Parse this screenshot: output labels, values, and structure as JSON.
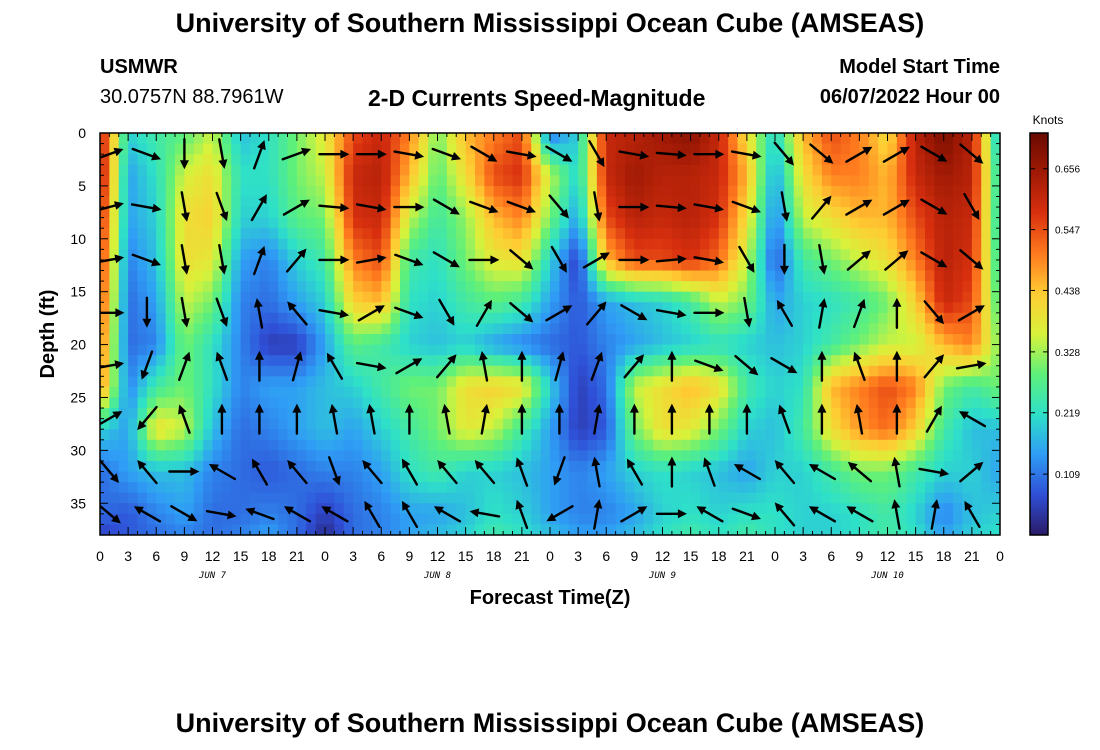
{
  "header": {
    "title": "University of Southern Mississippi Ocean Cube (AMSEAS)",
    "station": "USMWR",
    "coordinates": "30.0757N  88.7961W",
    "subtitle": "2-D Currents Speed-Magnitude",
    "model_start_label": "Model Start Time",
    "model_start_value": "06/07/2022 Hour 00"
  },
  "footer": {
    "title": "University of Southern Mississippi Ocean Cube (AMSEAS)"
  },
  "colors": {
    "scale": [
      "#2a1a66",
      "#2f4fd6",
      "#2f9cf5",
      "#2ee0c8",
      "#5ef07a",
      "#d8f23a",
      "#ffcc33",
      "#ff7a1e",
      "#d8300f",
      "#a11a05",
      "#6a0a00"
    ],
    "arrow": "#000000"
  },
  "chart_data": {
    "type": "heatmap",
    "title": "2-D Currents Speed-Magnitude",
    "xlabel": "Forecast Time(Z)",
    "ylabel": "Depth (ft)",
    "xlim": [
      0,
      96
    ],
    "ylim": [
      38,
      0
    ],
    "x_ticks": [
      0,
      3,
      6,
      9,
      12,
      15,
      18,
      21,
      24,
      27,
      30,
      33,
      36,
      39,
      42,
      45,
      48,
      51,
      54,
      57,
      60,
      63,
      66,
      69,
      72,
      75,
      78,
      81,
      84,
      87,
      90,
      93,
      96
    ],
    "x_tick_labels": [
      "0",
      "3",
      "6",
      "9",
      "12",
      "15",
      "18",
      "21",
      "0",
      "3",
      "6",
      "9",
      "12",
      "15",
      "18",
      "21",
      "0",
      "3",
      "6",
      "9",
      "12",
      "15",
      "18",
      "21",
      "0",
      "3",
      "6",
      "9",
      "12",
      "15",
      "18",
      "21",
      "0"
    ],
    "y_ticks": [
      0,
      5,
      10,
      15,
      20,
      25,
      30,
      35
    ],
    "y_tick_labels": [
      "0",
      "5",
      "10",
      "15",
      "20",
      "25",
      "30",
      "35"
    ],
    "day_labels": [
      {
        "label": "JUN 7",
        "hour": 12
      },
      {
        "label": "JUN 8",
        "hour": 36
      },
      {
        "label": "JUN 9",
        "hour": 60
      },
      {
        "label": "JUN 10",
        "hour": 84
      }
    ],
    "colorbar": {
      "unit": "Knots",
      "min": 0.0,
      "max": 0.72,
      "tick_values": [
        0.109,
        0.219,
        0.328,
        0.438,
        0.547,
        0.656
      ],
      "tick_labels": [
        "0.109",
        "0.219",
        "0.328",
        "0.438",
        "0.547",
        "0.656"
      ]
    },
    "speed_grid": {
      "hours": [
        0,
        3,
        6,
        9,
        12,
        15,
        18,
        21,
        24,
        27,
        30,
        33,
        36,
        39,
        42,
        45,
        48,
        51,
        54,
        57,
        60,
        63,
        66,
        69,
        72,
        75,
        78,
        81,
        84,
        87,
        90,
        93,
        96
      ],
      "depths": [
        0,
        4,
        8,
        12,
        16,
        20,
        24,
        28,
        32,
        36,
        38
      ],
      "values": [
        [
          0.62,
          0.2,
          0.25,
          0.28,
          0.35,
          0.18,
          0.22,
          0.3,
          0.38,
          0.55,
          0.6,
          0.5,
          0.3,
          0.45,
          0.5,
          0.55,
          0.1,
          0.2,
          0.6,
          0.62,
          0.65,
          0.68,
          0.6,
          0.4,
          0.2,
          0.45,
          0.55,
          0.5,
          0.4,
          0.62,
          0.7,
          0.62,
          0.15
        ],
        [
          0.64,
          0.15,
          0.22,
          0.36,
          0.4,
          0.22,
          0.22,
          0.3,
          0.35,
          0.6,
          0.62,
          0.45,
          0.28,
          0.4,
          0.55,
          0.58,
          0.35,
          0.2,
          0.6,
          0.65,
          0.62,
          0.62,
          0.6,
          0.45,
          0.15,
          0.4,
          0.5,
          0.5,
          0.45,
          0.6,
          0.65,
          0.62,
          0.2
        ],
        [
          0.6,
          0.15,
          0.2,
          0.4,
          0.42,
          0.2,
          0.2,
          0.28,
          0.3,
          0.58,
          0.6,
          0.35,
          0.25,
          0.32,
          0.45,
          0.5,
          0.3,
          0.15,
          0.55,
          0.62,
          0.6,
          0.62,
          0.58,
          0.4,
          0.12,
          0.35,
          0.4,
          0.45,
          0.45,
          0.55,
          0.62,
          0.6,
          0.2
        ],
        [
          0.58,
          0.12,
          0.18,
          0.4,
          0.38,
          0.15,
          0.12,
          0.2,
          0.25,
          0.5,
          0.55,
          0.25,
          0.22,
          0.3,
          0.38,
          0.4,
          0.2,
          0.05,
          0.45,
          0.55,
          0.55,
          0.58,
          0.52,
          0.35,
          0.08,
          0.25,
          0.3,
          0.35,
          0.4,
          0.5,
          0.62,
          0.58,
          0.22
        ],
        [
          0.56,
          0.1,
          0.15,
          0.35,
          0.3,
          0.12,
          0.1,
          0.15,
          0.2,
          0.42,
          0.45,
          0.22,
          0.2,
          0.25,
          0.28,
          0.25,
          0.15,
          0.08,
          0.15,
          0.18,
          0.2,
          0.25,
          0.35,
          0.3,
          0.15,
          0.2,
          0.22,
          0.25,
          0.3,
          0.42,
          0.6,
          0.55,
          0.25
        ],
        [
          0.52,
          0.1,
          0.12,
          0.3,
          0.22,
          0.12,
          0.05,
          0.05,
          0.15,
          0.28,
          0.25,
          0.2,
          0.18,
          0.2,
          0.15,
          0.12,
          0.1,
          0.08,
          0.12,
          0.15,
          0.18,
          0.2,
          0.22,
          0.2,
          0.18,
          0.2,
          0.25,
          0.3,
          0.35,
          0.35,
          0.45,
          0.5,
          0.3
        ],
        [
          0.5,
          0.12,
          0.25,
          0.3,
          0.22,
          0.12,
          0.15,
          0.15,
          0.18,
          0.2,
          0.25,
          0.3,
          0.3,
          0.4,
          0.42,
          0.4,
          0.2,
          0.05,
          0.1,
          0.35,
          0.4,
          0.45,
          0.4,
          0.25,
          0.2,
          0.22,
          0.45,
          0.5,
          0.55,
          0.5,
          0.3,
          0.25,
          0.3
        ],
        [
          0.2,
          0.15,
          0.4,
          0.35,
          0.18,
          0.1,
          0.12,
          0.15,
          0.18,
          0.15,
          0.2,
          0.25,
          0.3,
          0.38,
          0.35,
          0.25,
          0.15,
          0.05,
          0.08,
          0.3,
          0.4,
          0.38,
          0.3,
          0.2,
          0.18,
          0.25,
          0.4,
          0.48,
          0.52,
          0.42,
          0.25,
          0.18,
          0.18
        ],
        [
          0.1,
          0.15,
          0.18,
          0.18,
          0.12,
          0.1,
          0.08,
          0.1,
          0.12,
          0.12,
          0.15,
          0.22,
          0.25,
          0.2,
          0.2,
          0.18,
          0.15,
          0.12,
          0.15,
          0.2,
          0.22,
          0.2,
          0.18,
          0.15,
          0.2,
          0.2,
          0.25,
          0.3,
          0.3,
          0.25,
          0.2,
          0.2,
          0.15
        ],
        [
          0.1,
          0.08,
          0.12,
          0.15,
          0.1,
          0.1,
          0.12,
          0.1,
          0.05,
          0.1,
          0.12,
          0.15,
          0.15,
          0.18,
          0.22,
          0.2,
          0.15,
          0.12,
          0.12,
          0.15,
          0.2,
          0.22,
          0.2,
          0.22,
          0.22,
          0.2,
          0.2,
          0.22,
          0.25,
          0.2,
          0.12,
          0.18,
          0.2
        ],
        [
          0.05,
          0.08,
          0.1,
          0.12,
          0.1,
          0.12,
          0.15,
          0.1,
          0.02,
          0.1,
          0.12,
          0.15,
          0.18,
          0.2,
          0.25,
          0.22,
          0.18,
          0.15,
          0.15,
          0.18,
          0.22,
          0.25,
          0.22,
          0.25,
          0.22,
          0.2,
          0.2,
          0.22,
          0.25,
          0.22,
          0.15,
          0.2,
          0.22
        ]
      ]
    },
    "vectors": {
      "hours": [
        1,
        5,
        9,
        13,
        17,
        21,
        25,
        29,
        33,
        37,
        41,
        45,
        49,
        53,
        57,
        61,
        65,
        69,
        73,
        77,
        81,
        85,
        89,
        93
      ],
      "depths": [
        2,
        7,
        12,
        17,
        22,
        27,
        32,
        36
      ],
      "directions_deg": [
        [
          70,
          110,
          180,
          170,
          20,
          70,
          90,
          90,
          100,
          110,
          120,
          100,
          120,
          150,
          100,
          95,
          90,
          100,
          140,
          130,
          60,
          60,
          120,
          130
        ],
        [
          75,
          100,
          170,
          160,
          30,
          60,
          95,
          100,
          90,
          120,
          110,
          110,
          140,
          170,
          90,
          95,
          100,
          110,
          170,
          40,
          60,
          60,
          120,
          150
        ],
        [
          80,
          110,
          170,
          170,
          20,
          40,
          90,
          80,
          110,
          120,
          90,
          130,
          150,
          60,
          90,
          85,
          100,
          150,
          180,
          170,
          50,
          50,
          120,
          130
        ],
        [
          90,
          180,
          170,
          160,
          350,
          320,
          100,
          60,
          110,
          150,
          30,
          130,
          60,
          40,
          120,
          100,
          90,
          170,
          330,
          10,
          20,
          0,
          140,
          60
        ],
        [
          80,
          200,
          20,
          340,
          0,
          15,
          330,
          100,
          60,
          40,
          350,
          0,
          15,
          20,
          40,
          0,
          110,
          130,
          120,
          0,
          340,
          0,
          40,
          80
        ],
        [
          60,
          220,
          340,
          0,
          0,
          0,
          350,
          350,
          0,
          350,
          10,
          0,
          0,
          10,
          0,
          0,
          0,
          0,
          340,
          0,
          350,
          0,
          30,
          300
        ],
        [
          140,
          320,
          90,
          300,
          330,
          320,
          160,
          320,
          330,
          320,
          320,
          340,
          200,
          350,
          330,
          0,
          340,
          300,
          320,
          300,
          310,
          350,
          100,
          50
        ],
        [
          130,
          300,
          120,
          100,
          290,
          300,
          300,
          330,
          330,
          300,
          280,
          340,
          240,
          10,
          60,
          90,
          300,
          110,
          320,
          300,
          300,
          350,
          10,
          330
        ]
      ]
    }
  }
}
